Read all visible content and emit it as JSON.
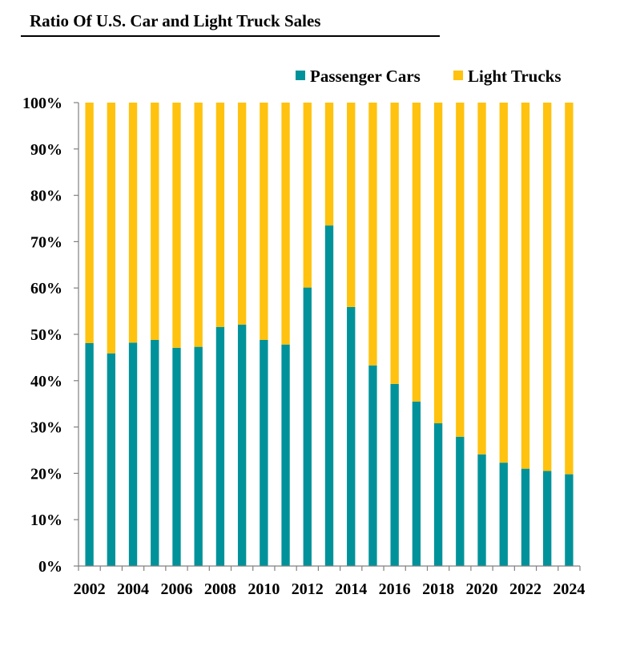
{
  "chart_data": {
    "type": "bar",
    "stacked": true,
    "normalized": true,
    "title": "Ratio Of U.S. Car and Light Truck Sales",
    "categories": [
      "2002",
      "2003",
      "2004",
      "2005",
      "2006",
      "2007",
      "2008",
      "2009",
      "2010",
      "2011",
      "2012",
      "2013",
      "2014",
      "2015",
      "2016",
      "2017",
      "2018",
      "2019",
      "2020",
      "2021",
      "2022",
      "2023",
      "2024"
    ],
    "x_tick_labels": [
      "2002",
      "2004",
      "2006",
      "2008",
      "2010",
      "2012",
      "2014",
      "2016",
      "2018",
      "2020",
      "2022",
      "2024"
    ],
    "series": [
      {
        "name": "Passenger Cars",
        "color": "#00929A",
        "values": [
          48.1,
          45.9,
          48.2,
          48.8,
          47.1,
          47.3,
          51.6,
          52.1,
          48.8,
          47.8,
          60.1,
          73.5,
          55.9,
          43.3,
          39.3,
          35.5,
          30.8,
          27.9,
          24.1,
          22.3,
          21.0,
          20.5,
          19.8
        ]
      },
      {
        "name": "Light Trucks",
        "color": "#FFC20E",
        "values": [
          51.9,
          54.1,
          51.8,
          51.2,
          52.9,
          52.7,
          48.4,
          47.9,
          51.2,
          52.2,
          39.9,
          26.5,
          44.1,
          56.7,
          60.7,
          64.5,
          69.2,
          72.1,
          75.9,
          77.7,
          79.0,
          79.5,
          80.2
        ]
      }
    ],
    "y_tick_labels": [
      "0%",
      "10%",
      "20%",
      "30%",
      "40%",
      "50%",
      "60%",
      "70%",
      "80%",
      "90%",
      "100%"
    ],
    "ylim": [
      0,
      100
    ],
    "grid": false,
    "legend_position": "top-right",
    "xlabel": "",
    "ylabel": ""
  }
}
